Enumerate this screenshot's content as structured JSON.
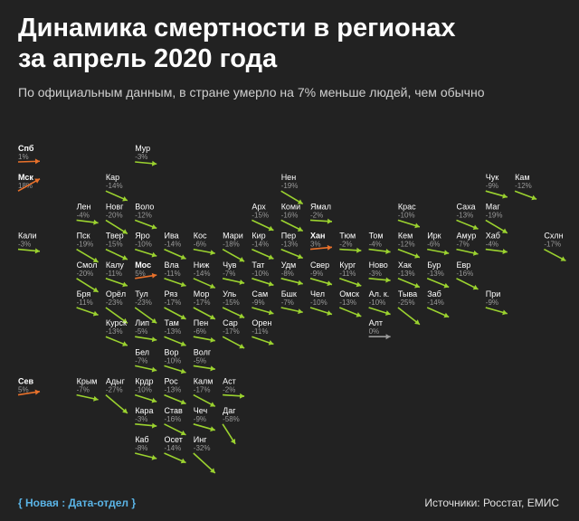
{
  "header": {
    "title_line1": "Динамика смертности в регионах",
    "title_line2": "за апрель 2020 года",
    "subtitle": "По официальным данным, в стране умерло на 7% меньше людей, чем обычно"
  },
  "footer": {
    "brand": "{ Новая : Дата-отдел }",
    "sources": "Источники: Росстат, ЕМИС"
  },
  "colors": {
    "background": "#222222",
    "decrease": "#9bd22f",
    "increase": "#e8712b",
    "nochange": "#9a9a9a",
    "value_text": "#9a9a9a"
  },
  "chart_data": {
    "type": "tile-grid-map",
    "encoding": "arrow slope shows change in deaths vs usual",
    "regions": [
      {
        "name": "Спб",
        "value": "1%",
        "change": 1,
        "col": 0,
        "row": 0,
        "bold": true
      },
      {
        "name": "Мур",
        "value": "-3%",
        "change": -3,
        "col": 4,
        "row": 0
      },
      {
        "name": "Мск",
        "value": "18%",
        "change": 18,
        "col": 0,
        "row": 1,
        "bold": true
      },
      {
        "name": "Кар",
        "value": "-14%",
        "change": -14,
        "col": 3,
        "row": 1
      },
      {
        "name": "Нен",
        "value": "-19%",
        "change": -19,
        "col": 9,
        "row": 1
      },
      {
        "name": "Чук",
        "value": "-9%",
        "change": -9,
        "col": 16,
        "row": 1
      },
      {
        "name": "Кам",
        "value": "-12%",
        "change": -12,
        "col": 17,
        "row": 1
      },
      {
        "name": "Лен",
        "value": "-4%",
        "change": -4,
        "col": 2,
        "row": 2
      },
      {
        "name": "Новг",
        "value": "-20%",
        "change": -20,
        "col": 3,
        "row": 2
      },
      {
        "name": "Воло",
        "value": "-12%",
        "change": -12,
        "col": 4,
        "row": 2
      },
      {
        "name": "Арх",
        "value": "-15%",
        "change": -15,
        "col": 8,
        "row": 2
      },
      {
        "name": "Коми",
        "value": "-16%",
        "change": -16,
        "col": 9,
        "row": 2
      },
      {
        "name": "Ямал",
        "value": "-2%",
        "change": -2,
        "col": 10,
        "row": 2
      },
      {
        "name": "Крас",
        "value": "-10%",
        "change": -10,
        "col": 13,
        "row": 2
      },
      {
        "name": "Саха",
        "value": "-13%",
        "change": -13,
        "col": 15,
        "row": 2
      },
      {
        "name": "Маг",
        "value": "-19%",
        "change": -19,
        "col": 16,
        "row": 2
      },
      {
        "name": "Кали",
        "value": "-3%",
        "change": -3,
        "col": 0,
        "row": 3
      },
      {
        "name": "Пск",
        "value": "-19%",
        "change": -19,
        "col": 2,
        "row": 3
      },
      {
        "name": "Твер",
        "value": "-15%",
        "change": -15,
        "col": 3,
        "row": 3
      },
      {
        "name": "Яро",
        "value": "-10%",
        "change": -10,
        "col": 4,
        "row": 3
      },
      {
        "name": "Ива",
        "value": "-14%",
        "change": -14,
        "col": 5,
        "row": 3
      },
      {
        "name": "Кос",
        "value": "-6%",
        "change": -6,
        "col": 6,
        "row": 3
      },
      {
        "name": "Мари",
        "value": "-18%",
        "change": -18,
        "col": 7,
        "row": 3
      },
      {
        "name": "Кир",
        "value": "-14%",
        "change": -14,
        "col": 8,
        "row": 3
      },
      {
        "name": "Пер",
        "value": "-13%",
        "change": -13,
        "col": 9,
        "row": 3
      },
      {
        "name": "Хан",
        "value": "3%",
        "change": 3,
        "col": 10,
        "row": 3,
        "bold": true
      },
      {
        "name": "Тюм",
        "value": "-2%",
        "change": -2,
        "col": 11,
        "row": 3
      },
      {
        "name": "Том",
        "value": "-4%",
        "change": -4,
        "col": 12,
        "row": 3
      },
      {
        "name": "Кем",
        "value": "-12%",
        "change": -12,
        "col": 13,
        "row": 3
      },
      {
        "name": "Ирк",
        "value": "-6%",
        "change": -6,
        "col": 14,
        "row": 3
      },
      {
        "name": "Амур",
        "value": "-7%",
        "change": -7,
        "col": 15,
        "row": 3
      },
      {
        "name": "Хаб",
        "value": "-4%",
        "change": -4,
        "col": 16,
        "row": 3
      },
      {
        "name": "Схлн",
        "value": "-17%",
        "change": -17,
        "col": 18,
        "row": 3
      },
      {
        "name": "Смол",
        "value": "-20%",
        "change": -20,
        "col": 2,
        "row": 4
      },
      {
        "name": "Калу",
        "value": "-11%",
        "change": -11,
        "col": 3,
        "row": 4
      },
      {
        "name": "Мос",
        "value": "5%",
        "change": 5,
        "col": 4,
        "row": 4,
        "bold": true
      },
      {
        "name": "Вла",
        "value": "-11%",
        "change": -11,
        "col": 5,
        "row": 4
      },
      {
        "name": "Ниж",
        "value": "-14%",
        "change": -14,
        "col": 6,
        "row": 4
      },
      {
        "name": "Чув",
        "value": "-7%",
        "change": -7,
        "col": 7,
        "row": 4
      },
      {
        "name": "Тат",
        "value": "-10%",
        "change": -10,
        "col": 8,
        "row": 4
      },
      {
        "name": "Удм",
        "value": "-8%",
        "change": -8,
        "col": 9,
        "row": 4
      },
      {
        "name": "Свер",
        "value": "-9%",
        "change": -9,
        "col": 10,
        "row": 4
      },
      {
        "name": "Кург",
        "value": "-11%",
        "change": -11,
        "col": 11,
        "row": 4
      },
      {
        "name": "Ново",
        "value": "-3%",
        "change": -3,
        "col": 12,
        "row": 4
      },
      {
        "name": "Хак",
        "value": "-13%",
        "change": -13,
        "col": 13,
        "row": 4
      },
      {
        "name": "Бур",
        "value": "-13%",
        "change": -13,
        "col": 14,
        "row": 4
      },
      {
        "name": "Евр",
        "value": "-16%",
        "change": -16,
        "col": 15,
        "row": 4
      },
      {
        "name": "Бря",
        "value": "-11%",
        "change": -11,
        "col": 2,
        "row": 5
      },
      {
        "name": "Орёл",
        "value": "-23%",
        "change": -23,
        "col": 3,
        "row": 5
      },
      {
        "name": "Тул",
        "value": "-23%",
        "change": -23,
        "col": 4,
        "row": 5
      },
      {
        "name": "Ряз",
        "value": "-17%",
        "change": -17,
        "col": 5,
        "row": 5
      },
      {
        "name": "Мор",
        "value": "-17%",
        "change": -17,
        "col": 6,
        "row": 5
      },
      {
        "name": "Уль",
        "value": "-15%",
        "change": -15,
        "col": 7,
        "row": 5
      },
      {
        "name": "Сам",
        "value": "-9%",
        "change": -9,
        "col": 8,
        "row": 5
      },
      {
        "name": "Бшк",
        "value": "-7%",
        "change": -7,
        "col": 9,
        "row": 5
      },
      {
        "name": "Чел",
        "value": "-10%",
        "change": -10,
        "col": 10,
        "row": 5
      },
      {
        "name": "Омск",
        "value": "-13%",
        "change": -13,
        "col": 11,
        "row": 5
      },
      {
        "name": "Ал. к.",
        "value": "-10%",
        "change": -10,
        "col": 12,
        "row": 5
      },
      {
        "name": "Тыва",
        "value": "-25%",
        "change": -25,
        "col": 13,
        "row": 5
      },
      {
        "name": "Заб",
        "value": "-14%",
        "change": -14,
        "col": 14,
        "row": 5
      },
      {
        "name": "При",
        "value": "-9%",
        "change": -9,
        "col": 16,
        "row": 5
      },
      {
        "name": "Курск",
        "value": "-13%",
        "change": -13,
        "col": 3,
        "row": 6
      },
      {
        "name": "Лип",
        "value": "-5%",
        "change": -5,
        "col": 4,
        "row": 6
      },
      {
        "name": "Там",
        "value": "-13%",
        "change": -13,
        "col": 5,
        "row": 6
      },
      {
        "name": "Пен",
        "value": "-6%",
        "change": -6,
        "col": 6,
        "row": 6
      },
      {
        "name": "Сар",
        "value": "-17%",
        "change": -17,
        "col": 7,
        "row": 6
      },
      {
        "name": "Орен",
        "value": "-11%",
        "change": -11,
        "col": 8,
        "row": 6
      },
      {
        "name": "Алт",
        "value": "0%",
        "change": 0,
        "col": 12,
        "row": 6
      },
      {
        "name": "Бел",
        "value": "-7%",
        "change": -7,
        "col": 4,
        "row": 7
      },
      {
        "name": "Вор",
        "value": "-10%",
        "change": -10,
        "col": 5,
        "row": 7
      },
      {
        "name": "Волг",
        "value": "-5%",
        "change": -5,
        "col": 6,
        "row": 7
      },
      {
        "name": "Сев",
        "value": "5%",
        "change": 5,
        "col": 0,
        "row": 8,
        "bold": true
      },
      {
        "name": "Крым",
        "value": "-7%",
        "change": -7,
        "col": 2,
        "row": 8
      },
      {
        "name": "Адыг",
        "value": "-27%",
        "change": -27,
        "col": 3,
        "row": 8
      },
      {
        "name": "Крдр",
        "value": "-10%",
        "change": -10,
        "col": 4,
        "row": 8
      },
      {
        "name": "Рос",
        "value": "-13%",
        "change": -13,
        "col": 5,
        "row": 8
      },
      {
        "name": "Калм",
        "value": "-17%",
        "change": -17,
        "col": 6,
        "row": 8
      },
      {
        "name": "Аст",
        "value": "-2%",
        "change": -2,
        "col": 7,
        "row": 8
      },
      {
        "name": "Кара",
        "value": "-3%",
        "change": -3,
        "col": 4,
        "row": 9
      },
      {
        "name": "Став",
        "value": "-16%",
        "change": -16,
        "col": 5,
        "row": 9
      },
      {
        "name": "Чеч",
        "value": "-9%",
        "change": -9,
        "col": 6,
        "row": 9
      },
      {
        "name": "Даг",
        "value": "-58%",
        "change": -58,
        "col": 7,
        "row": 9
      },
      {
        "name": "Каб",
        "value": "-8%",
        "change": -8,
        "col": 4,
        "row": 10
      },
      {
        "name": "Осет",
        "value": "-14%",
        "change": -14,
        "col": 5,
        "row": 10
      },
      {
        "name": "Инг",
        "value": "-32%",
        "change": -32,
        "col": 6,
        "row": 10
      }
    ]
  }
}
